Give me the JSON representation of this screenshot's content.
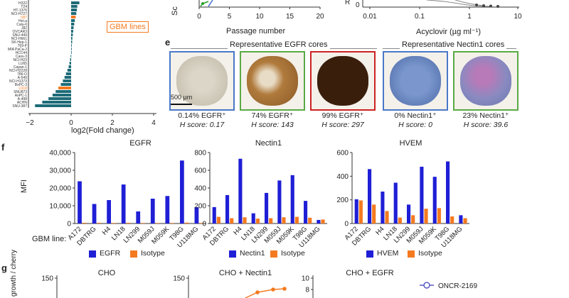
{
  "panel_a_partial": {
    "cell_lines": [
      "H322",
      "T24",
      "HT-1376",
      "NCI-H727",
      "U87",
      "HeLa",
      "Calu-6",
      "J82",
      "OVCAR3",
      "SNU-449",
      "NCI-H661",
      "SK-Hep-1",
      "769-P",
      "MIA PaCa-2",
      "HCC44",
      "Caov-3",
      "NCI-H23",
      "LU65",
      "Capan-1",
      "NCI-H2228",
      "786-O",
      "A-549",
      "NCI-H1373",
      "BxPC-3",
      "U118",
      "SNU873",
      "AsPC-1",
      "A-498",
      "ACHN",
      "SNU-387"
    ],
    "highlight_label": "GBM lines",
    "xlabel": "log2(Fold change)",
    "xticks": [
      "−2",
      "0",
      "2",
      "4"
    ]
  },
  "panel_b_partial": {
    "ylabel": "Sc",
    "xlabel": "Passage number",
    "xticks": [
      "0",
      "5",
      "10",
      "15",
      "20"
    ]
  },
  "panel_c_partial": {
    "ylabel": "R",
    "ytick": "0",
    "xlabel": "Acyclovir (µg ml⁻¹)",
    "xticks": [
      "0.01",
      "0.1",
      "1",
      "10"
    ]
  },
  "panel_e": {
    "label": "e",
    "egfr_title": "Representative EGFR cores",
    "nectin_title": "Representative Nectin1 cores",
    "scale_bar": "500 µm",
    "cores": [
      {
        "pct": "0.14% EGFR⁺",
        "h": "H score: 0.17",
        "border": "#4a78c8",
        "stain": "#c9c4b4"
      },
      {
        "pct": "74% EGFR⁺",
        "h": "H score: 143",
        "border": "#5aaa44",
        "stain": "#b07a3c"
      },
      {
        "pct": "99% EGFR⁺",
        "h": "H score: 297",
        "border": "#cc2222",
        "stain": "#3a1e0c"
      },
      {
        "pct": "0% Nectin1⁺",
        "h": "H score: 0",
        "border": "#4a78c8",
        "stain": "#5a7ab8"
      },
      {
        "pct": "23% Nectin1⁺",
        "h": "H score: 39.6",
        "border": "#5aaa44",
        "stain": "#8a7cb8"
      }
    ]
  },
  "panel_f": {
    "label": "f",
    "ylabel": "MFI",
    "row_label": "GBM line:",
    "categories": [
      "A172",
      "DBTRG",
      "H4",
      "LN18",
      "LN299",
      "M059J",
      "M059K",
      "T98G",
      "U118MG"
    ]
  },
  "chart_data": [
    {
      "type": "bar",
      "title": "EGFR",
      "ylabel": "MFI",
      "ylim": [
        0,
        40000
      ],
      "yticks": [
        "0",
        "10,000",
        "20,000",
        "30,000",
        "40,000"
      ],
      "categories": [
        "A172",
        "DBTRG",
        "H4",
        "LN18",
        "LN299",
        "M059J",
        "M059K",
        "T98G",
        "U118MG"
      ],
      "series": [
        {
          "name": "EGFR",
          "color": "#1f1fd6",
          "values": [
            23800,
            11000,
            13200,
            22000,
            6800,
            14000,
            15500,
            35500,
            9200
          ]
        },
        {
          "name": "Isotype",
          "color": "#f47a20",
          "values": [
            400,
            400,
            300,
            400,
            300,
            300,
            300,
            500,
            300
          ]
        }
      ]
    },
    {
      "type": "bar",
      "title": "Nectin1",
      "ylim": [
        0,
        800
      ],
      "yticks": [
        "0",
        "200",
        "400",
        "600",
        "800"
      ],
      "categories": [
        "A172",
        "DBTRG",
        "H4",
        "LN18",
        "LN299",
        "M059J",
        "M059K",
        "T98G",
        "U118MG"
      ],
      "series": [
        {
          "name": "Nectin1",
          "color": "#1f1fd6",
          "values": [
            185,
            320,
            730,
            115,
            345,
            485,
            545,
            255,
            40
          ]
        },
        {
          "name": "Isotype",
          "color": "#f47a20",
          "values": [
            75,
            60,
            70,
            55,
            60,
            70,
            75,
            65,
            45
          ]
        }
      ]
    },
    {
      "type": "bar",
      "title": "HVEM",
      "ylim": [
        0,
        600
      ],
      "yticks": [
        "0",
        "200",
        "400",
        "600"
      ],
      "categories": [
        "A172",
        "DBTRG",
        "H4",
        "LN18",
        "LN299",
        "M059J",
        "M059K",
        "T98G",
        "U118MG"
      ],
      "series": [
        {
          "name": "HVEM",
          "color": "#1f1fd6",
          "values": [
            205,
            460,
            270,
            345,
            160,
            480,
            395,
            525,
            70
          ]
        },
        {
          "name": "Isotype",
          "color": "#f47a20",
          "values": [
            195,
            160,
            105,
            50,
            70,
            125,
            130,
            60,
            45
          ]
        }
      ]
    }
  ],
  "panel_g_partial": {
    "label": "g",
    "ylabel": "growth / cherry",
    "titles": [
      "CHO",
      "CHO + Nectin1",
      "CHO + EGFR"
    ],
    "yticks": [
      "150",
      "150",
      "10",
      "8"
    ],
    "legend": "ONCR-2169"
  }
}
